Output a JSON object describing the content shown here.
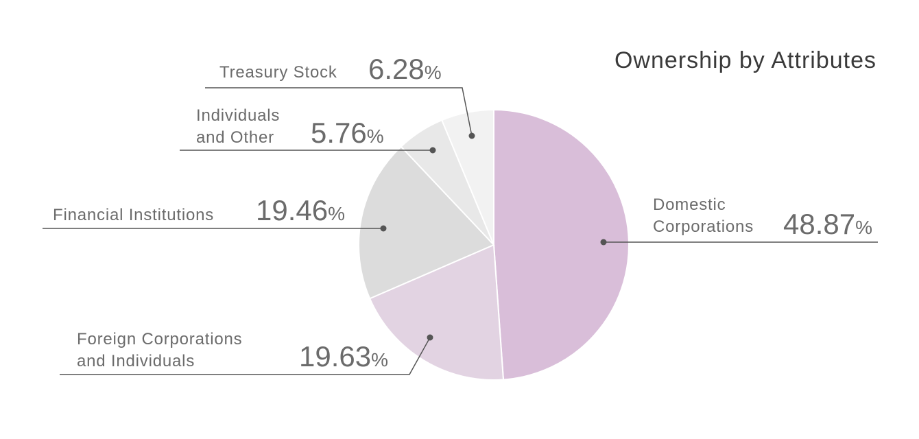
{
  "chart_data": {
    "type": "pie",
    "title": "Ownership by Attributes",
    "start_angle_deg": 0,
    "direction": "clockwise",
    "slices": [
      {
        "label": "Domestic Corporations",
        "label_lines": [
          "Domestic",
          "Corporations"
        ],
        "value": 48.87,
        "value_text": "48.87",
        "unit": "%",
        "color": "#d9bed9"
      },
      {
        "label": "Foreign Corporations and Individuals",
        "label_lines": [
          "Foreign Corporations",
          "and Individuals"
        ],
        "value": 19.63,
        "value_text": "19.63",
        "unit": "%",
        "color": "#e2d3e2"
      },
      {
        "label": "Financial Institutions",
        "label_lines": [
          "Financial Institutions"
        ],
        "value": 19.46,
        "value_text": "19.46",
        "unit": "%",
        "color": "#dcdcdc"
      },
      {
        "label": "Individuals and Other",
        "label_lines": [
          "Individuals",
          "and Other"
        ],
        "value": 5.76,
        "value_text": "5.76",
        "unit": "%",
        "color": "#e8e8e8"
      },
      {
        "label": "Treasury Stock",
        "label_lines": [
          "Treasury Stock"
        ],
        "value": 6.28,
        "value_text": "6.28",
        "unit": "%",
        "color": "#f2f2f2"
      }
    ]
  }
}
